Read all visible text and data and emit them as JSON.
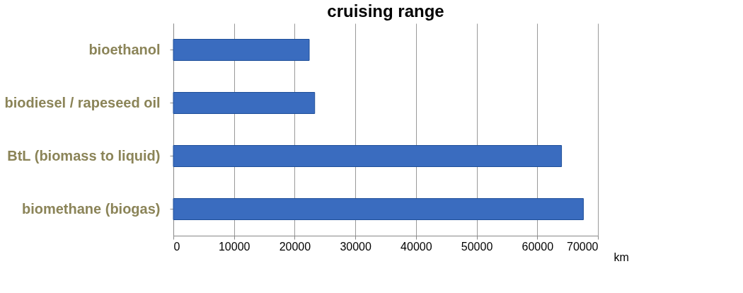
{
  "chart_data": {
    "type": "bar",
    "orientation": "horizontal",
    "title": "cruising range",
    "xlabel": "km",
    "categories": [
      "bioethanol",
      "biodiesel / rapeseed oil",
      "BtL (biomass to liquid)",
      "biomethane (biogas)"
    ],
    "values": [
      22400,
      23300,
      64000,
      67600
    ],
    "color": "#3a6cbf",
    "xlim": [
      0,
      70000
    ],
    "xticks": [
      0,
      10000,
      20000,
      30000,
      40000,
      50000,
      60000,
      70000
    ],
    "grid": "x"
  }
}
